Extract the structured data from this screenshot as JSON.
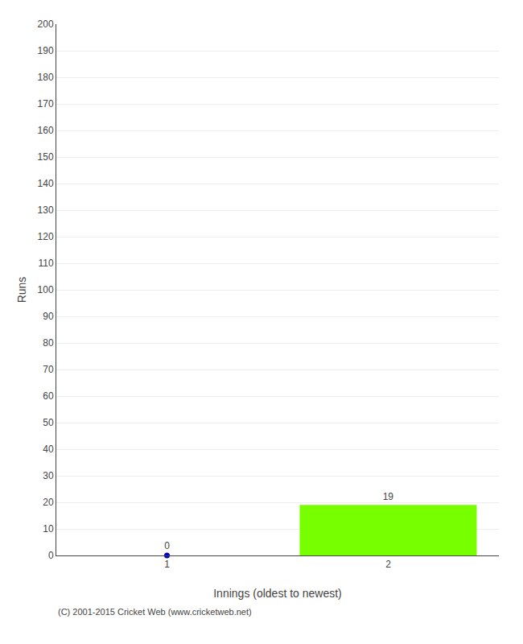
{
  "chart_data": {
    "type": "bar",
    "xlabel": "Innings (oldest to newest)",
    "ylabel": "Runs",
    "series": [
      {
        "type": "scatter",
        "x": [
          1
        ],
        "values": [
          0
        ],
        "color": "#0000cd",
        "marker": "circle"
      },
      {
        "type": "bar",
        "x": [
          2
        ],
        "values": [
          19
        ],
        "color": "#77ff00"
      }
    ],
    "xlim": [
      0.5,
      2.5
    ],
    "xticks": [
      1,
      2
    ],
    "ylim": [
      0,
      200
    ],
    "yticks": [
      0,
      10,
      20,
      30,
      40,
      50,
      60,
      70,
      80,
      90,
      100,
      110,
      120,
      130,
      140,
      150,
      160,
      170,
      180,
      190,
      200
    ],
    "grid": "y",
    "data_labels": true,
    "annotations": [
      "(C) 2001-2015 Cricket Web (www.cricketweb.net)"
    ]
  }
}
